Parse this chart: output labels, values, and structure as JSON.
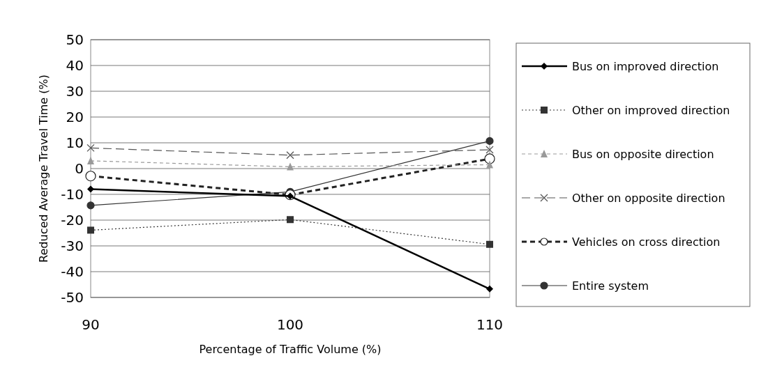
{
  "chart_data": {
    "type": "line",
    "xlabel": "Percentage of Traffic Volume (%)",
    "ylabel": "Reduced Average Travel Time (%)",
    "x": [
      90,
      100,
      110
    ],
    "xlim": [
      90,
      110
    ],
    "xticks": [
      90,
      100,
      110
    ],
    "ylim": [
      -50,
      50
    ],
    "yticks": [
      -50,
      -40,
      -30,
      -20,
      -10,
      0,
      10,
      20,
      30,
      40,
      50
    ],
    "grid": "y",
    "legend": "right",
    "series": [
      {
        "name": "Bus on improved direction",
        "color": "#000000",
        "marker": "diamond",
        "line_style": "solid",
        "values": [
          -8,
          -10.7,
          -46.7
        ]
      },
      {
        "name": "Other on improved direction",
        "color": "#333333",
        "marker": "square",
        "line_style": "dotted",
        "values": [
          -23.9,
          -19.8,
          -29.4
        ]
      },
      {
        "name": "Bus on opposite direction",
        "color": "#999999",
        "marker": "triangle",
        "line_style": "dashed",
        "values": [
          3,
          0.7,
          1.5
        ]
      },
      {
        "name": "Other on opposite direction",
        "color": "#555555",
        "marker": "cross",
        "line_style": "dashed",
        "values": [
          8,
          5.2,
          7.3
        ]
      },
      {
        "name": "Vehicles on cross direction",
        "color": "#222222",
        "marker": "circle",
        "line_style": "dashed",
        "values": [
          -2.9,
          -10.2,
          3.8
        ]
      },
      {
        "name": "Entire system",
        "color": "#333333",
        "marker": "circle",
        "line_style": "solid",
        "values": [
          -14.3,
          -9,
          10.7
        ]
      }
    ]
  }
}
